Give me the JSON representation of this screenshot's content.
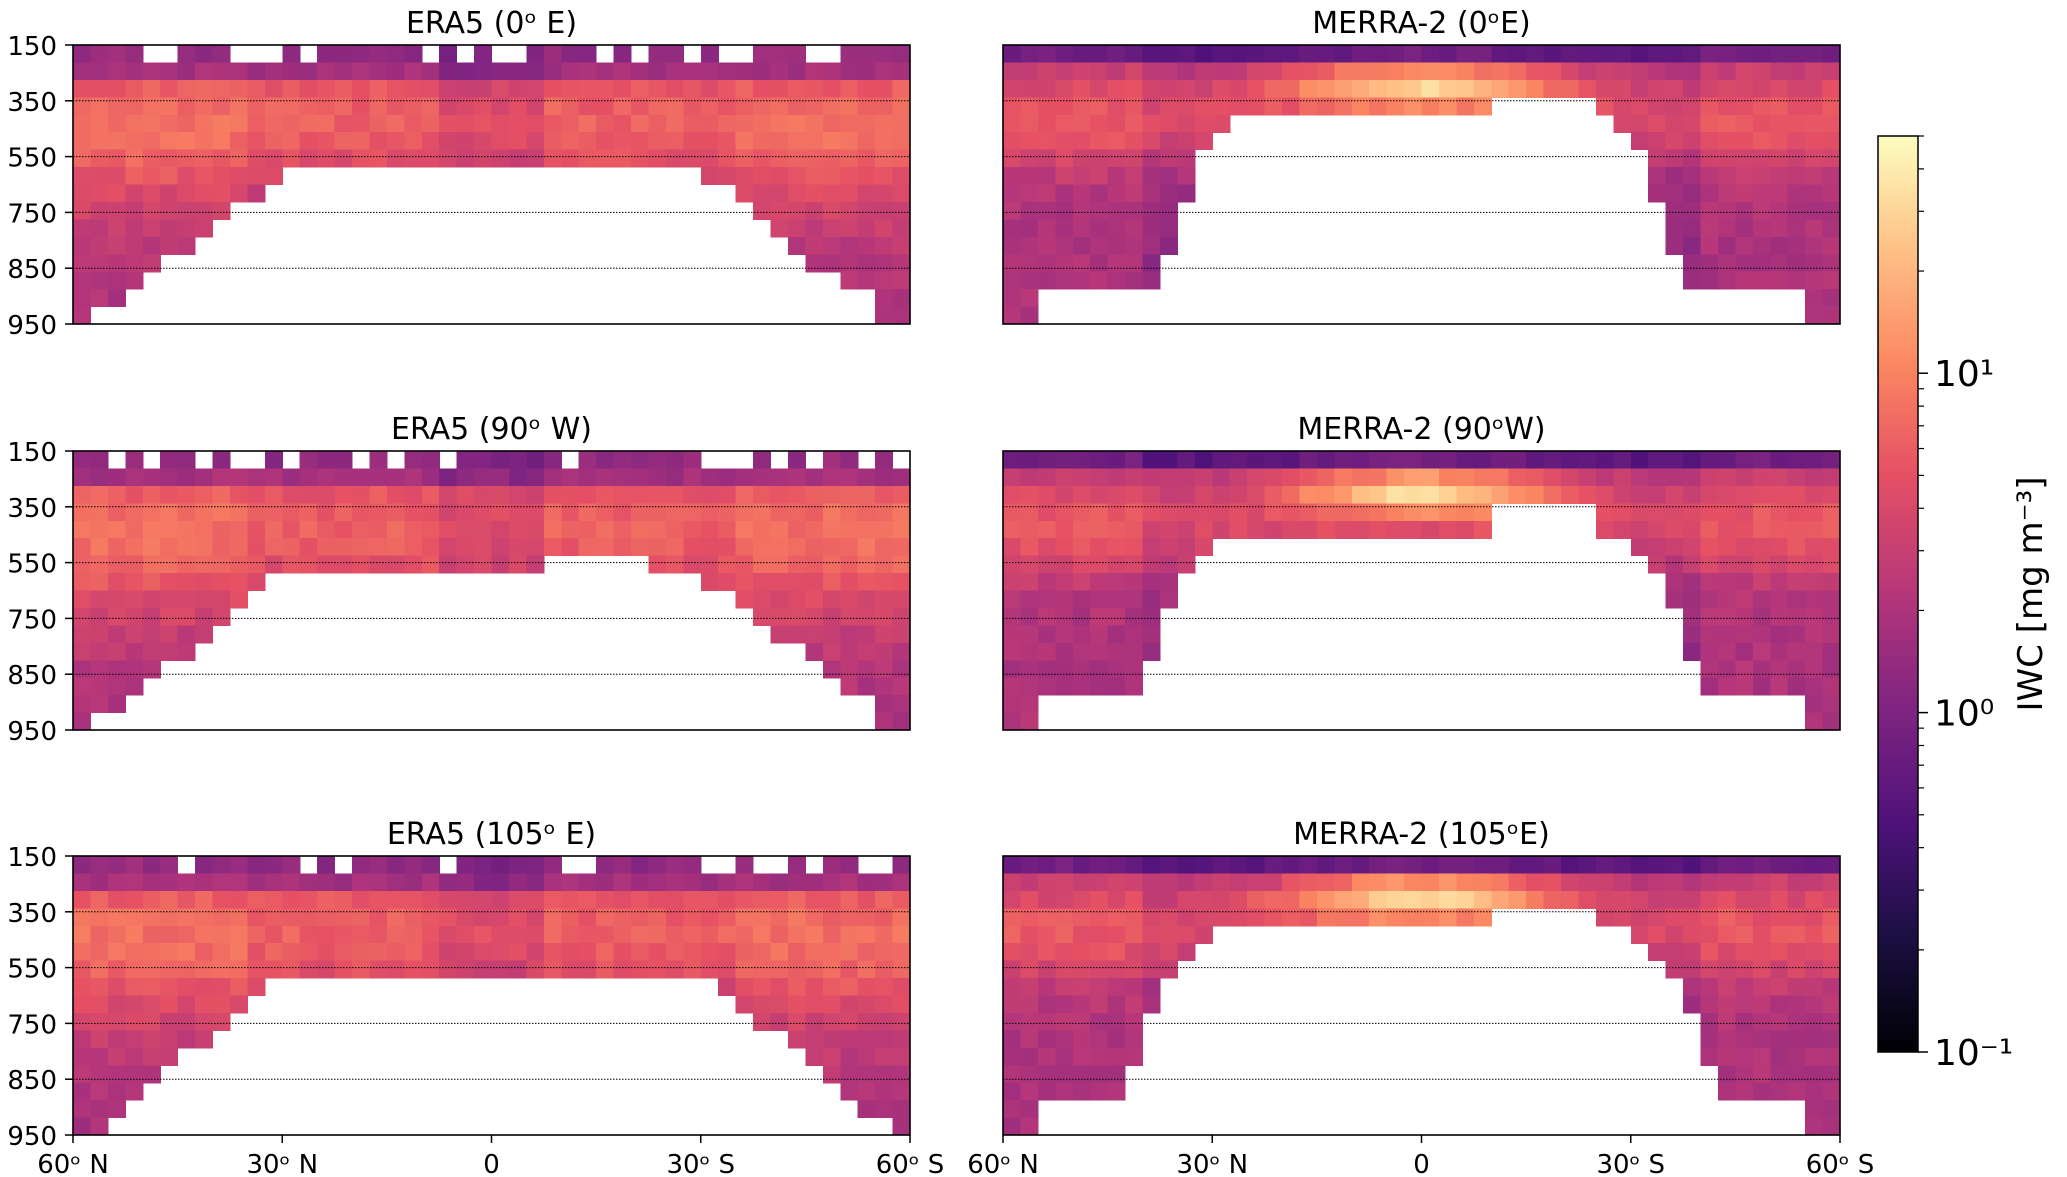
{
  "figure": {
    "colorbar": {
      "label": "IWC [mg m⁻³]",
      "colormap": "magma",
      "scale": "log",
      "vmin": 0.1,
      "vmax": 50,
      "ticks": [
        {
          "value": 0.1,
          "label": "10⁻¹"
        },
        {
          "value": 1,
          "label": "10⁰"
        },
        {
          "value": 10,
          "label": "10¹"
        }
      ]
    }
  },
  "chart_data": [
    {
      "type": "heatmap",
      "title": "ERA5 (0ᵒ E)",
      "y_ticks": [
        "150",
        "350",
        "550",
        "750",
        "850",
        "950"
      ],
      "x_ticks": [],
      "y_gridlines": true,
      "model": "era5",
      "variant": 0
    },
    {
      "type": "heatmap",
      "title": "MERRA-2 (0ᵒE)",
      "y_ticks": [],
      "x_ticks": [],
      "y_gridlines": true,
      "model": "merra",
      "variant": 0
    },
    {
      "type": "heatmap",
      "title": "ERA5 (90ᵒ W)",
      "y_ticks": [
        "150",
        "350",
        "550",
        "750",
        "850",
        "950"
      ],
      "x_ticks": [],
      "y_gridlines": true,
      "model": "era5",
      "variant": 1
    },
    {
      "type": "heatmap",
      "title": "MERRA-2 (90ᵒW)",
      "y_ticks": [],
      "x_ticks": [],
      "y_gridlines": true,
      "model": "merra",
      "variant": 1
    },
    {
      "type": "heatmap",
      "title": "ERA5 (105ᵒ E)",
      "y_ticks": [
        "150",
        "350",
        "550",
        "750",
        "850",
        "950"
      ],
      "x_ticks": [
        "60ᵒ N",
        "30ᵒ N",
        "0",
        "30ᵒ S",
        "60ᵒ S"
      ],
      "y_gridlines": true,
      "model": "era5",
      "variant": 2
    },
    {
      "type": "heatmap",
      "title": "MERRA-2 (105ᵒE)",
      "y_ticks": [],
      "x_ticks": [
        "60ᵒ N",
        "30ᵒ N",
        "0",
        "30ᵒ S",
        "60ᵒ S"
      ],
      "y_gridlines": true,
      "model": "merra",
      "variant": 2
    }
  ]
}
